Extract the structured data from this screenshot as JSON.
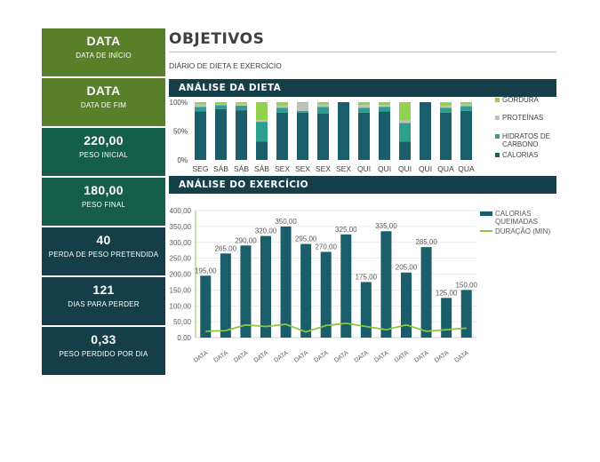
{
  "header": {
    "title": "OBJETIVOS",
    "subtitle": "DIÁRIO DE DIETA E EXERCÍCIO"
  },
  "sidebar": {
    "cards": [
      {
        "value": "DATA",
        "label": "DATA DE INÍCIO",
        "color": "#5a7f2b"
      },
      {
        "value": "DATA",
        "label": "DATA DE FIM",
        "color": "#5a7f2b"
      },
      {
        "value": "220,00",
        "label": "PESO INICIAL",
        "color": "#155e4a"
      },
      {
        "value": "180,00",
        "label": "PESO FINAL",
        "color": "#155e4a"
      },
      {
        "value": "40",
        "label": "PERDA DE PESO PRETENDIDA",
        "color": "#143f48"
      },
      {
        "value": "121",
        "label": "DIAS PARA PERDER",
        "color": "#143f48"
      },
      {
        "value": "0,33",
        "label": "PESO PERDIDO POR DIA",
        "color": "#143f48"
      }
    ]
  },
  "sections": {
    "diet_title": "ANÁLISE DA DIETA",
    "exercise_title": "ANÁLISE DO EXERCÍCIO"
  },
  "colors": {
    "dark_teal": "#1b5e6b",
    "gordura": "#92d050",
    "proteinas": "#bfbfbf",
    "hidratos": "#2e9e8f",
    "calorias": "#1b5e6b",
    "duracao": "#8dc63f"
  },
  "chart_data": [
    {
      "type": "bar",
      "stacked": "percent",
      "categories": [
        "SEG",
        "SÁB",
        "SÁB",
        "SÁB",
        "SEX",
        "SEX",
        "SEX",
        "SEX",
        "QUI",
        "QUI",
        "QUI",
        "QUI",
        "QUA",
        "QUA"
      ],
      "series": [
        {
          "name": "CALORIAS",
          "values": [
            84,
            88,
            86,
            32,
            82,
            82,
            80,
            100,
            82,
            84,
            32,
            100,
            82,
            85
          ]
        },
        {
          "name": "HIDRATOS DE CARBONO",
          "values": [
            8,
            7,
            8,
            34,
            8,
            3,
            12,
            0,
            8,
            8,
            32,
            0,
            8,
            8
          ]
        },
        {
          "name": "PROTEÍNAS",
          "values": [
            4,
            2,
            3,
            3,
            4,
            13,
            4,
            0,
            5,
            3,
            4,
            0,
            4,
            3
          ]
        },
        {
          "name": "GORDURA",
          "values": [
            4,
            3,
            3,
            31,
            6,
            2,
            4,
            0,
            5,
            5,
            32,
            0,
            6,
            4
          ]
        }
      ],
      "yticks": [
        "0%",
        "50%",
        "100%"
      ],
      "legend_position": "right",
      "legend_order": [
        "GORDURA",
        "PROTEÍNAS",
        "HIDRATOS DE CARBONO",
        "CALORIAS"
      ]
    },
    {
      "type": "bar",
      "categories": [
        "DATA",
        "DATA",
        "DATA",
        "DATA",
        "DATA",
        "DATA",
        "DATA",
        "DATA",
        "DATA",
        "DATA",
        "DATA",
        "DATA",
        "DATA",
        "DATA"
      ],
      "series": [
        {
          "name": "CALORIAS QUEIMADAS",
          "type": "bar",
          "values": [
            195,
            265,
            290,
            320,
            350,
            295,
            270,
            325,
            175,
            335,
            205,
            285,
            125,
            150
          ],
          "labels": [
            "195,00",
            "265,00",
            "290,00",
            "320,00",
            "350,00",
            "295,00",
            "270,00",
            "325,00",
            "175,00",
            "335,00",
            "205,00",
            "285,00",
            "125,00",
            "150,00"
          ]
        },
        {
          "name": "DURAÇÃO (MIN)",
          "type": "line",
          "values": [
            20,
            22,
            40,
            35,
            42,
            18,
            38,
            45,
            35,
            25,
            40,
            20,
            25,
            30
          ]
        }
      ],
      "ylim": [
        0,
        400
      ],
      "yticks": [
        "0,00",
        "50,00",
        "100,00",
        "150,00",
        "200,00",
        "250,00",
        "300,00",
        "350,00",
        "400,00"
      ],
      "grid": true,
      "legend_position": "right"
    }
  ]
}
